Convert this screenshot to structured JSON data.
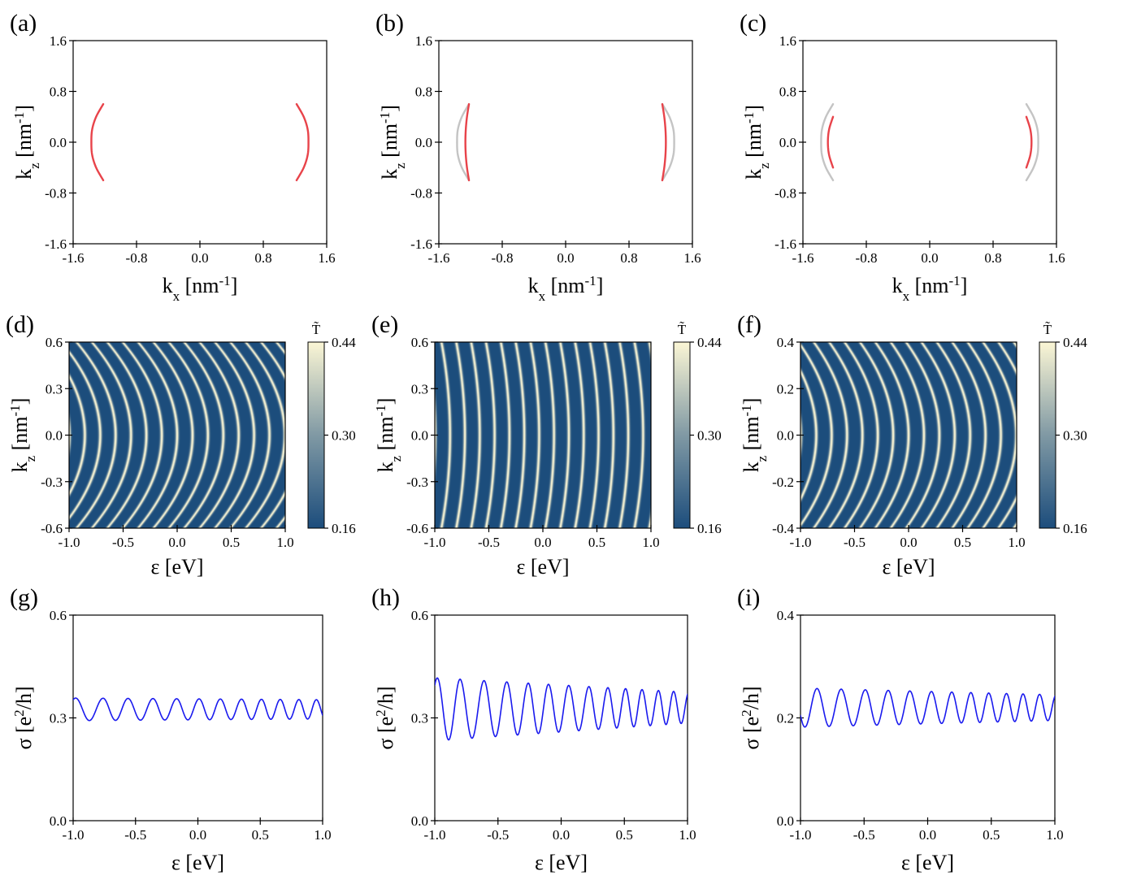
{
  "colors": {
    "red_curve": "#e8434a",
    "gray_curve": "#c4c4c4",
    "blue_curve": "#1a1aee",
    "cmap_low": "#1c4d7c",
    "cmap_high": "#fbf6d5"
  },
  "chart_data": [
    {
      "id": "a",
      "panel_label": "(a)",
      "type": "line",
      "xlabel": "kx [nm-1]",
      "ylabel": "kz [nm-1]",
      "xlim": [
        -1.6,
        1.6
      ],
      "ylim": [
        -1.6,
        1.6
      ],
      "xticks": [
        "-1.6",
        "-0.8",
        "0.0",
        "0.8",
        "1.6"
      ],
      "yticks": [
        "-1.6",
        "-0.8",
        "0.0",
        "0.8",
        "1.6"
      ],
      "series": [
        {
          "color": "red",
          "values": [
            {
              "x": -1.22,
              "y": -0.6
            },
            {
              "x": -1.31,
              "y": -0.4
            },
            {
              "x": -1.36,
              "y": -0.2
            },
            {
              "x": -1.37,
              "y": 0.0
            },
            {
              "x": -1.36,
              "y": 0.2
            },
            {
              "x": -1.31,
              "y": 0.4
            },
            {
              "x": -1.22,
              "y": 0.6
            }
          ]
        },
        {
          "color": "red",
          "values": [
            {
              "x": 1.22,
              "y": -0.6
            },
            {
              "x": 1.31,
              "y": -0.4
            },
            {
              "x": 1.36,
              "y": -0.2
            },
            {
              "x": 1.37,
              "y": 0.0
            },
            {
              "x": 1.36,
              "y": 0.2
            },
            {
              "x": 1.31,
              "y": 0.4
            },
            {
              "x": 1.22,
              "y": 0.6
            }
          ]
        }
      ]
    },
    {
      "id": "b",
      "panel_label": "(b)",
      "type": "line",
      "xlabel": "kx [nm-1]",
      "ylabel": "kz [nm-1]",
      "xlim": [
        -1.6,
        1.6
      ],
      "ylim": [
        -1.6,
        1.6
      ],
      "xticks": [
        "-1.6",
        "-0.8",
        "0.0",
        "0.8",
        "1.6"
      ],
      "yticks": [
        "-1.6",
        "-0.8",
        "0.0",
        "0.8",
        "1.6"
      ],
      "series": [
        {
          "color": "gray",
          "values": [
            {
              "x": -1.22,
              "y": -0.6
            },
            {
              "x": -1.31,
              "y": -0.4
            },
            {
              "x": -1.36,
              "y": -0.2
            },
            {
              "x": -1.37,
              "y": 0.0
            },
            {
              "x": -1.36,
              "y": 0.2
            },
            {
              "x": -1.31,
              "y": 0.4
            },
            {
              "x": -1.22,
              "y": 0.6
            }
          ]
        },
        {
          "color": "gray",
          "values": [
            {
              "x": 1.22,
              "y": -0.6
            },
            {
              "x": 1.31,
              "y": -0.4
            },
            {
              "x": 1.36,
              "y": -0.2
            },
            {
              "x": 1.37,
              "y": 0.0
            },
            {
              "x": 1.36,
              "y": 0.2
            },
            {
              "x": 1.31,
              "y": 0.4
            },
            {
              "x": 1.22,
              "y": 0.6
            }
          ]
        },
        {
          "color": "red",
          "values": [
            {
              "x": -1.22,
              "y": -0.6
            },
            {
              "x": -1.245,
              "y": -0.4
            },
            {
              "x": -1.26,
              "y": -0.2
            },
            {
              "x": -1.265,
              "y": 0.0
            },
            {
              "x": -1.26,
              "y": 0.2
            },
            {
              "x": -1.245,
              "y": 0.4
            },
            {
              "x": -1.22,
              "y": 0.6
            }
          ]
        },
        {
          "color": "red",
          "values": [
            {
              "x": 1.22,
              "y": -0.6
            },
            {
              "x": 1.245,
              "y": -0.4
            },
            {
              "x": 1.26,
              "y": -0.2
            },
            {
              "x": 1.265,
              "y": 0.0
            },
            {
              "x": 1.26,
              "y": 0.2
            },
            {
              "x": 1.245,
              "y": 0.4
            },
            {
              "x": 1.22,
              "y": 0.6
            }
          ]
        }
      ]
    },
    {
      "id": "c",
      "panel_label": "(c)",
      "type": "line",
      "xlabel": "kx [nm-1]",
      "ylabel": "kz [nm-1]",
      "xlim": [
        -1.6,
        1.6
      ],
      "ylim": [
        -1.6,
        1.6
      ],
      "xticks": [
        "-1.6",
        "-0.8",
        "0.0",
        "0.8",
        "1.6"
      ],
      "yticks": [
        "-1.6",
        "-0.8",
        "0.0",
        "0.8",
        "1.6"
      ],
      "series": [
        {
          "color": "gray",
          "values": [
            {
              "x": -1.22,
              "y": -0.6
            },
            {
              "x": -1.31,
              "y": -0.4
            },
            {
              "x": -1.36,
              "y": -0.2
            },
            {
              "x": -1.37,
              "y": 0.0
            },
            {
              "x": -1.36,
              "y": 0.2
            },
            {
              "x": -1.31,
              "y": 0.4
            },
            {
              "x": -1.22,
              "y": 0.6
            }
          ]
        },
        {
          "color": "gray",
          "values": [
            {
              "x": 1.22,
              "y": -0.6
            },
            {
              "x": 1.31,
              "y": -0.4
            },
            {
              "x": 1.36,
              "y": -0.2
            },
            {
              "x": 1.37,
              "y": 0.0
            },
            {
              "x": 1.36,
              "y": 0.2
            },
            {
              "x": 1.31,
              "y": 0.4
            },
            {
              "x": 1.22,
              "y": 0.6
            }
          ]
        },
        {
          "color": "red",
          "values": [
            {
              "x": -1.22,
              "y": -0.4
            },
            {
              "x": -1.27,
              "y": -0.2
            },
            {
              "x": -1.285,
              "y": 0.0
            },
            {
              "x": -1.27,
              "y": 0.2
            },
            {
              "x": -1.22,
              "y": 0.4
            }
          ]
        },
        {
          "color": "red",
          "values": [
            {
              "x": 1.22,
              "y": -0.4
            },
            {
              "x": 1.27,
              "y": -0.2
            },
            {
              "x": 1.285,
              "y": 0.0
            },
            {
              "x": 1.27,
              "y": 0.2
            },
            {
              "x": 1.22,
              "y": 0.4
            }
          ]
        }
      ]
    },
    {
      "id": "d",
      "panel_label": "(d)",
      "type": "heatmap",
      "xlabel": "ε [eV]",
      "ylabel": "kz [nm-1]",
      "xlim": [
        -1.0,
        1.0
      ],
      "ylim": [
        -0.6,
        0.6
      ],
      "xticks": [
        "-1.0",
        "-0.5",
        "0.0",
        "0.5",
        "1.0"
      ],
      "yticks": [
        "-0.6",
        "-0.3",
        "0.0",
        "0.3",
        "0.6"
      ],
      "colorbar": {
        "label": "T̃",
        "ticks": [
          "0.16",
          "0.30",
          "0.44"
        ],
        "range": [
          0.16,
          0.44
        ]
      },
      "pattern": {
        "fringe_count_at_kz0": 14,
        "curvature": 1.0,
        "fringe_width": 0.22
      }
    },
    {
      "id": "e",
      "panel_label": "(e)",
      "type": "heatmap",
      "xlabel": "ε [eV]",
      "ylabel": "kz [nm-1]",
      "xlim": [
        -1.0,
        1.0
      ],
      "ylim": [
        -0.6,
        0.6
      ],
      "xticks": [
        "-1.0",
        "-0.5",
        "0.0",
        "0.5",
        "1.0"
      ],
      "yticks": [
        "-0.6",
        "-0.3",
        "0.0",
        "0.3",
        "0.6"
      ],
      "colorbar": {
        "label": "T̃",
        "ticks": [
          "0.16",
          "0.30",
          "0.44"
        ],
        "range": [
          0.16,
          0.44
        ]
      },
      "pattern": {
        "fringe_count_at_kz0": 14.5,
        "curvature": 0.22,
        "fringe_width": 0.22
      }
    },
    {
      "id": "f",
      "panel_label": "(f)",
      "type": "heatmap",
      "xlabel": "ε [eV]",
      "ylabel": "kz [nm-1]",
      "xlim": [
        -1.0,
        1.0
      ],
      "ylim": [
        -0.4,
        0.4
      ],
      "xticks": [
        "-1.0",
        "-0.5",
        "0.0",
        "0.5",
        "1.0"
      ],
      "yticks": [
        "-0.4",
        "-0.2",
        "0.0",
        "0.2",
        "0.4"
      ],
      "colorbar": {
        "label": "T̃",
        "ticks": [
          "0.16",
          "0.30",
          "0.44"
        ],
        "range": [
          0.16,
          0.44
        ]
      },
      "pattern": {
        "fringe_count_at_kz0": 14,
        "curvature": 0.85,
        "fringe_width": 0.22
      }
    },
    {
      "id": "g",
      "panel_label": "(g)",
      "type": "line",
      "xlabel": "ε [eV]",
      "ylabel": "σ [e2/h]",
      "xlim": [
        -1.0,
        1.0
      ],
      "ylim": [
        0.0,
        0.6
      ],
      "xticks": [
        "-1.0",
        "-0.5",
        "0.0",
        "0.5",
        "1.0"
      ],
      "yticks": [
        "0.0",
        "0.3",
        "0.6"
      ],
      "series": [
        {
          "color": "blue",
          "oscillation": {
            "mean_start": 0.325,
            "mean_end": 0.325,
            "amp_start": 0.033,
            "amp_end": 0.028,
            "peaks_eV": [
              -0.98,
              -0.76,
              -0.56,
              -0.36,
              -0.17,
              0.01,
              0.18,
              0.35,
              0.51,
              0.66,
              0.81,
              0.95
            ]
          }
        }
      ]
    },
    {
      "id": "h",
      "panel_label": "(h)",
      "type": "line",
      "xlabel": "ε [eV]",
      "ylabel": "σ [e2/h]",
      "xlim": [
        -1.0,
        1.0
      ],
      "ylim": [
        0.0,
        0.6
      ],
      "xticks": [
        "-1.0",
        "-0.5",
        "0.0",
        "0.5",
        "1.0"
      ],
      "yticks": [
        "0.0",
        "0.3",
        "0.6"
      ],
      "series": [
        {
          "color": "blue",
          "oscillation": {
            "mean_start": 0.325,
            "mean_end": 0.33,
            "amp_start": 0.092,
            "amp_end": 0.045,
            "peaks_eV": [
              -0.98,
              -0.8,
              -0.61,
              -0.43,
              -0.26,
              -0.1,
              0.06,
              0.22,
              0.37,
              0.51,
              0.64,
              0.77,
              0.89
            ]
          }
        }
      ]
    },
    {
      "id": "i",
      "panel_label": "(i)",
      "type": "line",
      "xlabel": "ε [eV]",
      "ylabel": "σ [e2/h]",
      "xlim": [
        -1.0,
        1.0
      ],
      "ylim": [
        0.0,
        0.4
      ],
      "xticks": [
        "-1.0",
        "-0.5",
        "0.0",
        "0.5",
        "1.0"
      ],
      "yticks": [
        "0.0",
        "0.2",
        "0.4"
      ],
      "series": [
        {
          "color": "blue",
          "oscillation": {
            "mean_start": 0.22,
            "mean_end": 0.22,
            "amp_start": 0.038,
            "amp_end": 0.025,
            "peaks_eV": [
              -0.87,
              -0.68,
              -0.49,
              -0.31,
              -0.14,
              0.03,
              0.19,
              0.34,
              0.48,
              0.62,
              0.75,
              0.88
            ]
          }
        }
      ]
    }
  ]
}
